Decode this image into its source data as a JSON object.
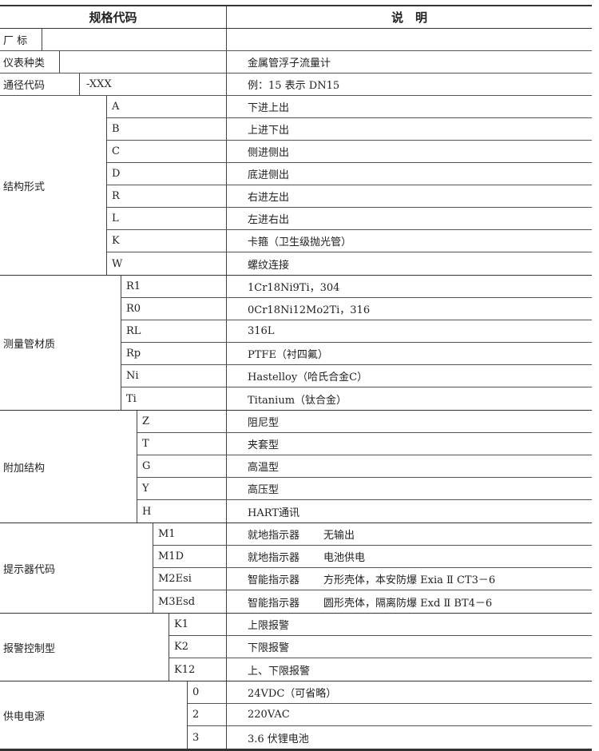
{
  "header": {
    "code": "规格代码",
    "desc": "说　明"
  },
  "top_rows": [
    {
      "label": "厂 标",
      "code": "",
      "desc": ""
    },
    {
      "label": "仪表种类",
      "code": "",
      "desc": "金属管浮子流量计"
    },
    {
      "label": "通径代码",
      "code": "-XXX",
      "desc": "例：15 表示 DN15"
    }
  ],
  "groups": [
    {
      "label": "结构形式",
      "rows": [
        {
          "code": "A",
          "desc": "下进上出"
        },
        {
          "code": "B",
          "desc": "上进下出"
        },
        {
          "code": "C",
          "desc": "侧进侧出"
        },
        {
          "code": "D",
          "desc": "底进侧出"
        },
        {
          "code": "R",
          "desc": "右进左出"
        },
        {
          "code": "L",
          "desc": "左进右出"
        },
        {
          "code": "K",
          "desc": "卡箍（卫生级抛光管）"
        },
        {
          "code": "W",
          "desc": "螺纹连接"
        }
      ]
    },
    {
      "label": "测量管材质",
      "rows": [
        {
          "code": "R1",
          "desc": "1Cr18Ni9Ti，304"
        },
        {
          "code": "R0",
          "desc": "0Cr18Ni12Mo2Ti，316"
        },
        {
          "code": "RL",
          "desc": "316L"
        },
        {
          "code": "Rp",
          "desc": "PTFE（衬四氟）"
        },
        {
          "code": "Ni",
          "desc": "Hastelloy（哈氏合金C）"
        },
        {
          "code": "Ti",
          "desc": "Titanium（钛合金）"
        }
      ]
    },
    {
      "label": "附加结构",
      "rows": [
        {
          "code": "Z",
          "desc": "阻尼型"
        },
        {
          "code": "T",
          "desc": "夹套型"
        },
        {
          "code": "G",
          "desc": "高温型"
        },
        {
          "code": "Y",
          "desc": "高压型"
        },
        {
          "code": "H",
          "desc": "HART通讯"
        }
      ]
    },
    {
      "label": "提示器代码",
      "rows": [
        {
          "code": "M1",
          "desc": "就地指示器",
          "desc2": "无输出"
        },
        {
          "code": "M1D",
          "desc": "就地指示器",
          "desc2": "电池供电"
        },
        {
          "code": "M2Esi",
          "desc": "智能指示器",
          "desc2": "方形壳体，本安防爆 Exia Ⅱ CT3－6"
        },
        {
          "code": "M3Esd",
          "desc": "智能指示器",
          "desc2": "圆形壳体，隔离防爆 Exd Ⅱ BT4－6"
        }
      ]
    },
    {
      "label": "报警控制型",
      "rows": [
        {
          "code": "K1",
          "desc": "上限报警"
        },
        {
          "code": "K2",
          "desc": "下限报警"
        },
        {
          "code": "K12",
          "desc": "上、下限报警"
        }
      ]
    },
    {
      "label": "供电电源",
      "rows": [
        {
          "code": "0",
          "desc": "24VDC（可省略）"
        },
        {
          "code": "2",
          "desc": "220VAC"
        },
        {
          "code": "3",
          "desc": "3.6 伏锂电池"
        }
      ]
    }
  ]
}
